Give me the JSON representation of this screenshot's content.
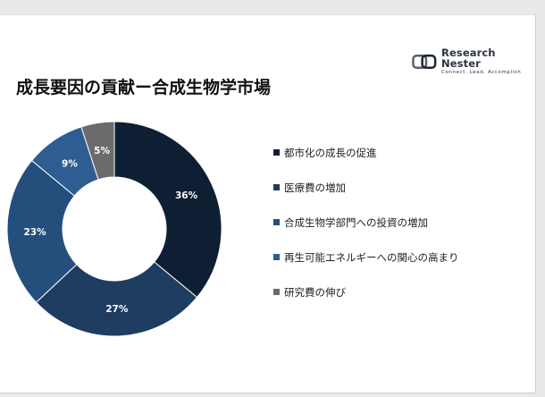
{
  "brand": {
    "name": "Research Nester",
    "tagline": "Connect. Lead. Accomplish"
  },
  "chart_data": {
    "type": "pie",
    "title": "成長要因の貢献ー合成生物学市場",
    "donut": true,
    "categories": [
      "都市化の成長の促進",
      "医療費の増加",
      "合成生物学部門への投資の増加",
      "再生可能エネルギーへの関心の高まり",
      "研究費の伸び"
    ],
    "values": [
      36,
      27,
      23,
      9,
      5
    ],
    "value_labels": [
      "36%",
      "27%",
      "23%",
      "9%",
      "5%"
    ],
    "colors": [
      "#0f1f33",
      "#1f3c61",
      "#244f7c",
      "#2d5d91",
      "#6b6b6b"
    ],
    "legend_position": "right"
  }
}
